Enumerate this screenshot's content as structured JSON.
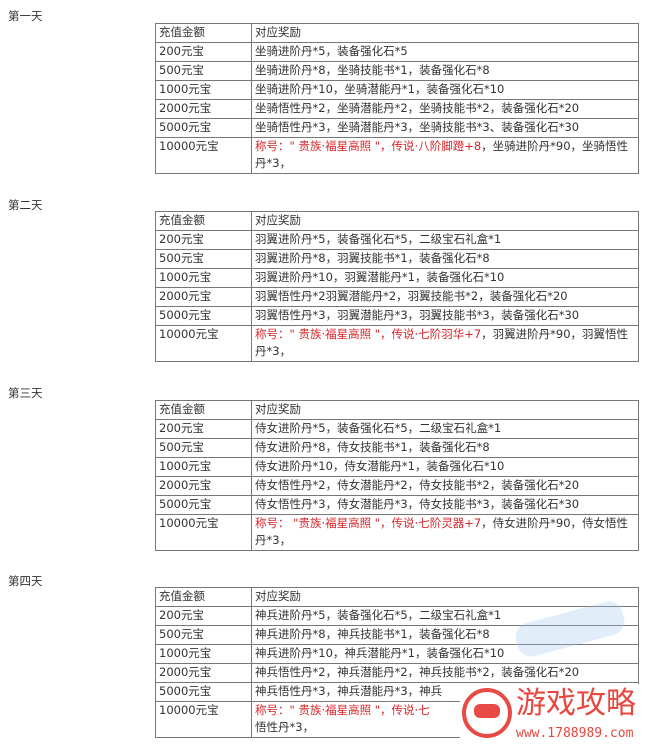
{
  "header": [
    "充值金额",
    "对应奖励"
  ],
  "days": [
    {
      "title": "第一天",
      "rows": [
        [
          "200元宝",
          "坐骑进阶丹*5，装备强化石*5"
        ],
        [
          "500元宝",
          "坐骑进阶丹*8，坐骑技能书*1，装备强化石*8"
        ],
        [
          "1000元宝",
          "坐骑进阶丹*10，坐骑潜能丹*1，装备强化石*10"
        ],
        [
          "2000元宝",
          "坐骑悟性丹*2，坐骑潜能丹*2，坐骑技能书*2，装备强化石*20"
        ],
        [
          "5000元宝",
          "坐骑悟性丹*3，坐骑潜能丹*3，坐骑技能书*3、装备强化石*30"
        ]
      ],
      "last": {
        "amount": "10000元宝",
        "red": "称号：\" 贵族·福星高照 \"，传说·八阶脚蹬+8",
        "rest": "，坐骑进阶丹*90，坐骑悟性丹*3，"
      }
    },
    {
      "title": "第二天",
      "rows": [
        [
          "200元宝",
          "羽翼进阶丹*5，装备强化石*5，二级宝石礼盒*1"
        ],
        [
          "500元宝",
          "羽翼进阶丹*8，羽翼技能书*1，装备强化石*8"
        ],
        [
          "1000元宝",
          "羽翼进阶丹*10，羽翼潜能丹*1，装备强化石*10"
        ],
        [
          "2000元宝",
          "羽翼悟性丹*2羽翼潜能丹*2，羽翼技能书*2，装备强化石*20"
        ],
        [
          "5000元宝",
          "羽翼悟性丹*3，羽翼潜能丹*3，羽翼技能书*3，装备强化石*30"
        ]
      ],
      "last": {
        "amount": "10000元宝",
        "red": "称号：\" 贵族·福星高照 \"，传说·七阶羽华+7",
        "rest": "，羽翼进阶丹*90，羽翼悟性丹*3，"
      }
    },
    {
      "title": "第三天",
      "rows": [
        [
          "200元宝",
          "侍女进阶丹*5，装备强化石*5，二级宝石礼盒*1"
        ],
        [
          "500元宝",
          "侍女进阶丹*8，侍女技能书*1，装备强化石*8"
        ],
        [
          "1000元宝",
          "侍女进阶丹*10，侍女潜能丹*1，装备强化石*10"
        ],
        [
          "2000元宝",
          "侍女悟性丹*2，侍女潜能丹*2，侍女技能书*2，装备强化石*20"
        ],
        [
          "5000元宝",
          "侍女悟性丹*3，侍女潜能丹*3，侍女技能书*3，装备强化石*30"
        ]
      ],
      "last": {
        "amount": "10000元宝",
        "red": "称号： \"贵族·福星高照 \"，传说·七阶灵器+7",
        "rest": "，侍女进阶丹*90，侍女悟性丹*3，"
      }
    },
    {
      "title": "第四天",
      "rows": [
        [
          "200元宝",
          "神兵进阶丹*5，装备强化石*5，二级宝石礼盒*1"
        ],
        [
          "500元宝",
          "神兵进阶丹*8，神兵技能书*1，装备强化石*8"
        ],
        [
          "1000元宝",
          "神兵进阶丹*10，神兵潜能丹*1，装备强化石*10"
        ],
        [
          "2000元宝",
          "神兵悟性丹*2，神兵潜能丹*2，神兵技能书*2，装备强化石*20"
        ],
        [
          "5000元宝",
          "神兵悟性丹*3，神兵潜能丹*3，神兵"
        ]
      ],
      "last": {
        "amount": "10000元宝",
        "red": "称号：\" 贵族·福星高照 \"，传说·七",
        "rest": "　　　　　　　　　　　　　悟性丹*3，"
      }
    }
  ],
  "watermark": {
    "title": "游戏攻略",
    "url": "www.1788989.com",
    "faint": "游戏"
  }
}
